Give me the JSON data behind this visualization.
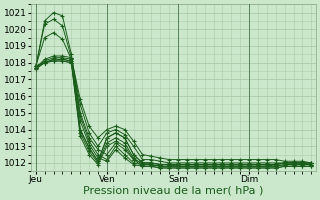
{
  "bg_color": "#cce8cc",
  "grid_color": "#aaccaa",
  "line_color": "#1a5c1a",
  "ylim": [
    1011.5,
    1021.5
  ],
  "yticks": [
    1012,
    1013,
    1014,
    1015,
    1016,
    1017,
    1018,
    1019,
    1020,
    1021
  ],
  "xlabel": "Pression niveau de la mer( hPa )",
  "xlabel_fontsize": 8,
  "tick_fontsize": 6.5,
  "day_labels": [
    "Jeu",
    "Ven",
    "Sam",
    "Dim"
  ],
  "day_positions": [
    0,
    8,
    16,
    24
  ],
  "vline_positions": [
    0,
    8,
    16,
    24
  ],
  "total_steps": 32,
  "members": [
    [
      1017.7,
      1020.5,
      1021.0,
      1020.8,
      1018.5,
      1015.0,
      1013.5,
      1012.8,
      1012.5,
      1013.2,
      1012.8,
      1012.2,
      1012.0,
      1012.0,
      1011.9,
      1011.9,
      1011.8,
      1011.8,
      1011.8,
      1011.8,
      1011.8,
      1011.8,
      1011.8,
      1011.8,
      1011.8,
      1011.8,
      1011.8,
      1011.9,
      1012.0,
      1012.0,
      1012.0,
      1011.9
    ],
    [
      1017.8,
      1020.3,
      1020.6,
      1020.2,
      1018.3,
      1014.8,
      1013.3,
      1012.5,
      1012.2,
      1013.0,
      1012.5,
      1012.0,
      1011.9,
      1011.9,
      1011.8,
      1011.8,
      1011.8,
      1011.8,
      1011.8,
      1011.8,
      1011.8,
      1011.8,
      1011.8,
      1011.8,
      1011.8,
      1011.8,
      1011.8,
      1011.8,
      1011.9,
      1011.9,
      1011.9,
      1011.9
    ],
    [
      1017.8,
      1019.5,
      1019.8,
      1019.4,
      1018.2,
      1014.5,
      1013.1,
      1012.3,
      1012.1,
      1012.8,
      1012.3,
      1011.9,
      1011.8,
      1011.8,
      1011.7,
      1011.7,
      1011.7,
      1011.7,
      1011.7,
      1011.7,
      1011.7,
      1011.7,
      1011.7,
      1011.7,
      1011.7,
      1011.7,
      1011.7,
      1011.7,
      1011.8,
      1011.8,
      1011.8,
      1011.8
    ],
    [
      1017.8,
      1018.0,
      1018.2,
      1018.2,
      1018.1,
      1014.0,
      1012.9,
      1012.1,
      1013.5,
      1013.8,
      1013.5,
      1012.5,
      1012.0,
      1012.0,
      1011.9,
      1011.9,
      1011.9,
      1011.9,
      1011.9,
      1011.9,
      1011.9,
      1011.9,
      1011.9,
      1011.9,
      1011.9,
      1011.9,
      1011.9,
      1011.9,
      1012.0,
      1012.0,
      1012.0,
      1012.0
    ],
    [
      1017.8,
      1018.0,
      1018.2,
      1018.2,
      1018.1,
      1014.0,
      1012.9,
      1012.1,
      1013.5,
      1013.8,
      1013.5,
      1012.5,
      1012.0,
      1012.0,
      1011.9,
      1011.9,
      1011.9,
      1011.9,
      1011.9,
      1011.9,
      1011.9,
      1011.9,
      1011.9,
      1011.9,
      1011.9,
      1011.9,
      1011.9,
      1011.9,
      1012.0,
      1012.0,
      1012.0,
      1012.0
    ],
    [
      1017.7,
      1018.0,
      1018.1,
      1018.1,
      1018.0,
      1013.8,
      1012.7,
      1012.0,
      1013.2,
      1013.5,
      1013.2,
      1012.3,
      1011.9,
      1011.9,
      1011.8,
      1011.8,
      1011.8,
      1011.8,
      1011.8,
      1011.8,
      1011.8,
      1011.8,
      1011.8,
      1011.8,
      1011.8,
      1011.8,
      1011.8,
      1011.8,
      1011.9,
      1011.9,
      1011.9,
      1011.9
    ],
    [
      1017.6,
      1018.0,
      1018.1,
      1018.1,
      1018.0,
      1013.6,
      1012.5,
      1011.9,
      1013.0,
      1013.3,
      1013.0,
      1012.2,
      1011.8,
      1011.8,
      1011.7,
      1011.7,
      1011.7,
      1011.7,
      1011.7,
      1011.7,
      1011.7,
      1011.7,
      1011.7,
      1011.7,
      1011.7,
      1011.7,
      1011.7,
      1011.7,
      1011.8,
      1011.8,
      1011.8,
      1011.8
    ],
    [
      1017.7,
      1018.1,
      1018.3,
      1018.3,
      1018.2,
      1015.5,
      1013.8,
      1013.0,
      1013.8,
      1014.0,
      1013.7,
      1013.0,
      1012.2,
      1012.2,
      1012.1,
      1012.0,
      1012.0,
      1012.0,
      1012.0,
      1012.0,
      1012.0,
      1012.0,
      1012.0,
      1012.0,
      1012.0,
      1012.0,
      1012.0,
      1012.0,
      1012.0,
      1012.0,
      1012.0,
      1012.0
    ],
    [
      1017.7,
      1018.2,
      1018.4,
      1018.4,
      1018.3,
      1015.8,
      1014.2,
      1013.5,
      1014.0,
      1014.2,
      1014.0,
      1013.3,
      1012.5,
      1012.4,
      1012.3,
      1012.2,
      1012.2,
      1012.2,
      1012.2,
      1012.2,
      1012.2,
      1012.2,
      1012.2,
      1012.2,
      1012.2,
      1012.2,
      1012.2,
      1012.2,
      1012.1,
      1012.1,
      1012.1,
      1012.0
    ]
  ]
}
